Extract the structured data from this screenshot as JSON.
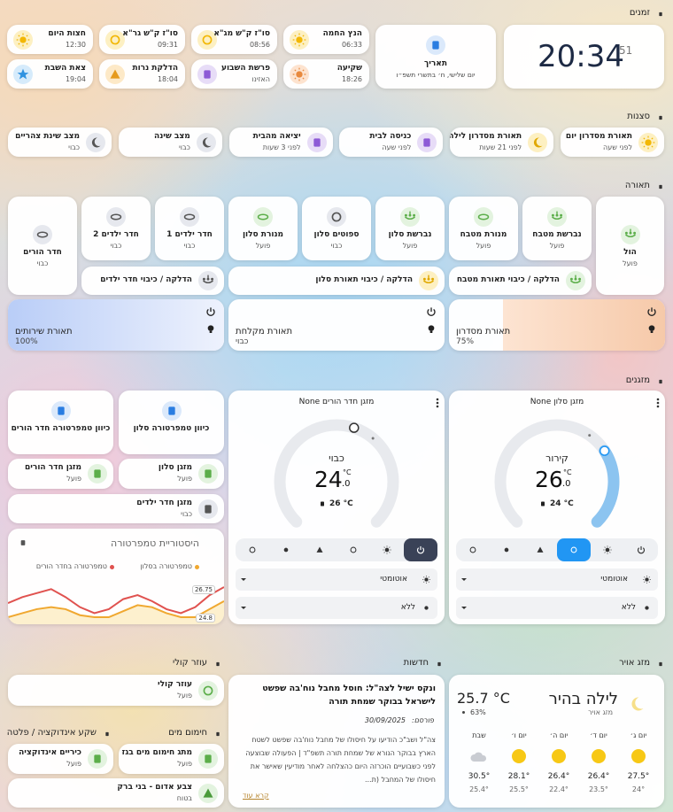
{
  "zmanim": {
    "title": "זמנים",
    "clock": "20:34",
    "seconds": "51",
    "date": {
      "name": "תאריך",
      "state": "יום שלישי, ח׳ בתשרי תשפ״ו"
    },
    "items": [
      {
        "name": "הנץ החמה",
        "state": "06:33"
      },
      {
        "name": "סו\"ז ק\"ש מג\"א",
        "state": "08:56"
      },
      {
        "name": "סו\"ז ק\"ש גר\"א",
        "state": "09:31"
      },
      {
        "name": "חצות היום",
        "state": "12:30"
      },
      {
        "name": "שקיעה",
        "state": "18:26"
      },
      {
        "name": "פרשת השבוע",
        "state": "האזינו"
      },
      {
        "name": "הדלקת נרות",
        "state": "18:04"
      },
      {
        "name": "צאת השבת",
        "state": "19:04"
      }
    ]
  },
  "scenes": {
    "title": "סצנות",
    "items": [
      {
        "name": "תאורת מסדרון יום",
        "state": "לפני שעה"
      },
      {
        "name": "תאורת מסדרון לילה",
        "state": "לפני 21 שעות"
      },
      {
        "name": "כניסה לבית",
        "state": "לפני שעה"
      },
      {
        "name": "יציאה מהבית",
        "state": "לפני 3 שעות"
      },
      {
        "name": "מצב שינה",
        "state": "כבוי"
      },
      {
        "name": "מצב שינת צהריים",
        "state": "כבוי"
      }
    ]
  },
  "lighting": {
    "title": "תאורה",
    "lights": [
      {
        "name": "הול",
        "state": "פועל"
      },
      {
        "name": "נברשת מטבח",
        "state": "פועל"
      },
      {
        "name": "מנורת מטבח",
        "state": "פועל"
      },
      {
        "name": "נברשת סלון",
        "state": "פועל"
      },
      {
        "name": "ספוטים סלון",
        "state": "כבוי"
      },
      {
        "name": "מנורת סלון",
        "state": "פועל"
      },
      {
        "name": "חדר ילדים 1",
        "state": "כבוי"
      },
      {
        "name": "חדר ילדים 2",
        "state": "כבוי"
      },
      {
        "name": "חדר הורים",
        "state": "כבוי"
      }
    ],
    "toggles": [
      "הדלקה / כיבוי תאורת מטבח",
      "הדלקה / כיבוי תאורת סלון",
      "הדלקה / כיבוי חדר ילדים"
    ],
    "dimmers": [
      {
        "name": "תאורת מסדרון",
        "state": "75%",
        "brightness": 75
      },
      {
        "name": "תאורת מקלחת",
        "state": "כבוי"
      },
      {
        "name": "תאורת שירותים",
        "state": "100%",
        "brightness": 100
      }
    ]
  },
  "climate": {
    "title": "מזגנים",
    "thermostats": [
      {
        "name": "מזגן סלון None",
        "mode": "קירור",
        "target": "26",
        "target_decimal": ".0",
        "unit": "°C",
        "current": "24 °C",
        "preset": "אוטומטי",
        "swing": "ללא"
      },
      {
        "name": "מזגן חדר הורים None",
        "mode": "כבוי",
        "target": "24",
        "target_decimal": ".0",
        "unit": "°C",
        "current": "26 °C",
        "preset": "אוטומטי",
        "swing": "ללא"
      }
    ],
    "entities": [
      {
        "name": "כיוון טמפרטורה סלון"
      },
      {
        "name": "כיוון טמפרטורה חדר הורים"
      },
      {
        "name": "מזגן סלון",
        "state": "פועל"
      },
      {
        "name": "מזגן חדר הורים",
        "state": "פועל"
      },
      {
        "name": "מזגן חדר ילדים",
        "state": "כבוי"
      }
    ],
    "history": {
      "title": "היסטוריית טמפרטורה",
      "series": [
        {
          "name": "טמפרטורה בסלון",
          "color": "#f0a830",
          "values": [
            24.9,
            25.1,
            25.3,
            25.4,
            25.3,
            25.0,
            24.9,
            24.9,
            25.2,
            25.5,
            25.4,
            25.1,
            24.9,
            24.9,
            25.3,
            25.7
          ]
        },
        {
          "name": "טמפרטורה בחדר הורים",
          "color": "#e0524f",
          "values": [
            25.6,
            25.9,
            26.1,
            26.3,
            25.9,
            25.4,
            25.1,
            25.3,
            25.8,
            26.0,
            25.7,
            25.3,
            25.1,
            25.4,
            26.0,
            26.4
          ]
        }
      ],
      "labels": [
        "26.75",
        "24.8"
      ]
    }
  },
  "weather": {
    "title": "מזג אויר",
    "condition": "לילה בהיר",
    "name": "מזג אויר",
    "temperature": "25.7 °C",
    "humidity": "63%",
    "forecast": [
      {
        "day": "יום ג׳",
        "high": "27.5°",
        "low": "24°"
      },
      {
        "day": "יום ד׳",
        "high": "26.4°",
        "low": "23.5°"
      },
      {
        "day": "יום ה׳",
        "high": "26.4°",
        "low": "22.4°"
      },
      {
        "day": "יום ו׳",
        "high": "28.1°",
        "low": "25.5°"
      },
      {
        "day": "שבת",
        "high": "30.5°",
        "low": "25.4°"
      }
    ]
  },
  "news": {
    "title": "חדשות",
    "headline": "ונקס ישיל לצה\"ל: חוסל מחבל נוח'בה שפשט לישראל בבוקר שמחת תורה",
    "published_label": "פורסם:",
    "published": "30/09/2025",
    "body": "צה\"ל ושב\"כ הודיעו על חיסולו של מחבל נוח'בה שפשט לשטח הארץ בבוקר הנורא של שמחת תורה תשפ\"ד | הפעולה שבוצעה לפני כשבועיים הוכרזה היום כהצלחה לאחר מודיעין שאישר את חיסולו של המחבל (ת...",
    "more": "קרא עוד"
  },
  "voice": {
    "title": "עוזר קולי",
    "item": {
      "name": "עוזר קולי",
      "state": "פועל"
    }
  },
  "water": {
    "title": "חימום מים",
    "item": {
      "name": "מתג חימום מים בגז",
      "state": "פועל"
    }
  },
  "induction": {
    "title": "שקע אינדוקציה / פלטה",
    "item": {
      "name": "כיריים אינדוקציה",
      "state": "פועל"
    }
  },
  "alert": {
    "name": "צבע אדום - בני ברק",
    "state": "בטוח"
  }
}
